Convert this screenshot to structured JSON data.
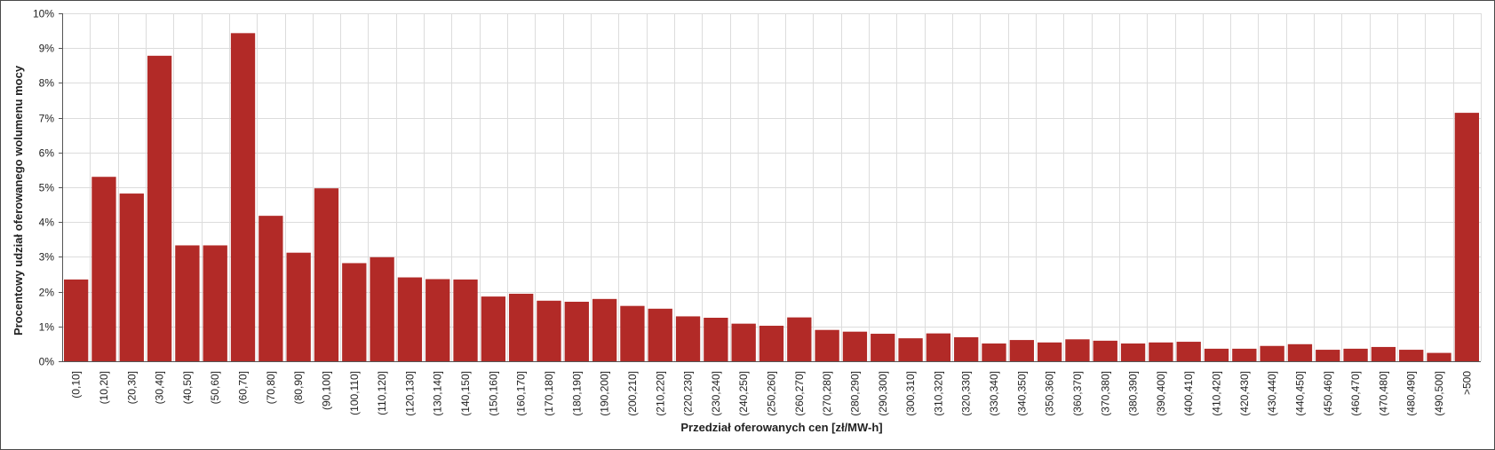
{
  "chart_data": {
    "type": "bar",
    "xlabel": "Przedział oferowanych cen [zł/MW-h]",
    "ylabel": "Procentowy udział oferowanego wolumenu mocy",
    "ylim": [
      0,
      10
    ],
    "y_tick_values": [
      0,
      1,
      2,
      3,
      4,
      5,
      6,
      7,
      8,
      9,
      10
    ],
    "y_tick_labels": [
      "0%",
      "1%",
      "2%",
      "3%",
      "4%",
      "5%",
      "6%",
      "7%",
      "8%",
      "9%",
      "10%"
    ],
    "grid": true,
    "bar_color": "#b22a27",
    "categories": [
      "(0,10]",
      "(10,20]",
      "(20,30]",
      "(30,40]",
      "(40,50]",
      "(50,60]",
      "(60,70]",
      "(70,80]",
      "(80,90]",
      "(90,100]",
      "(100,110]",
      "(110,120]",
      "(120,130]",
      "(130,140]",
      "(140,150]",
      "(150,160]",
      "(160,170]",
      "(170,180]",
      "(180,190]",
      "(190,200]",
      "(200,210]",
      "(210,220]",
      "(220,230]",
      "(230,240]",
      "(240,250]",
      "(250,260]",
      "(260,270]",
      "(270,280]",
      "(280,290]",
      "(290,300]",
      "(300,310]",
      "(310,320]",
      "(320,330]",
      "(330,340]",
      "(340,350]",
      "(350,360]",
      "(360,370]",
      "(370,380]",
      "(380,390]",
      "(390,400]",
      "(400,410]",
      "(410,420]",
      "(420,430]",
      "(430,440]",
      "(440,450]",
      "(450,460]",
      "(460,470]",
      "(470,480]",
      "(480,490]",
      "(490,500]",
      ">500"
    ],
    "values": [
      2.35,
      5.3,
      4.82,
      8.78,
      3.33,
      3.33,
      9.43,
      4.18,
      3.12,
      4.97,
      2.82,
      2.99,
      2.41,
      2.36,
      2.35,
      1.86,
      1.94,
      1.74,
      1.71,
      1.79,
      1.59,
      1.51,
      1.29,
      1.25,
      1.08,
      1.02,
      1.26,
      0.9,
      0.85,
      0.79,
      0.66,
      0.8,
      0.69,
      0.51,
      0.61,
      0.54,
      0.63,
      0.59,
      0.51,
      0.54,
      0.56,
      0.36,
      0.36,
      0.44,
      0.49,
      0.33,
      0.36,
      0.41,
      0.33,
      0.24,
      7.14
    ]
  }
}
